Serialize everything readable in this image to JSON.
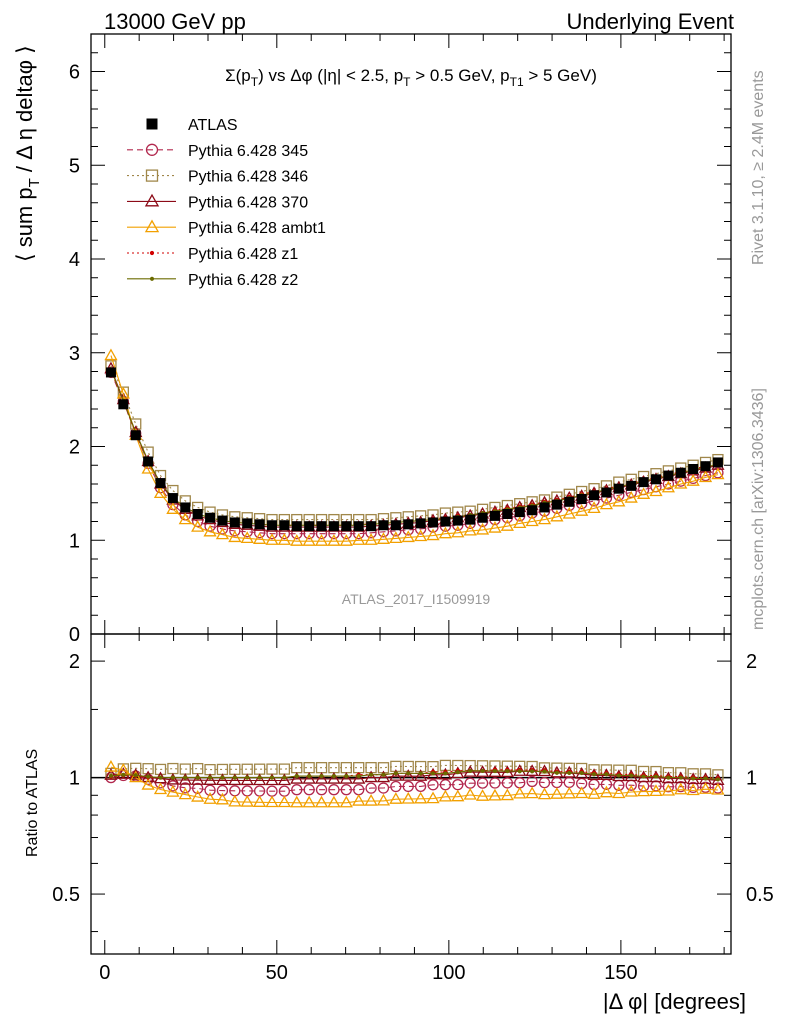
{
  "header": {
    "left": "13000 GeV pp",
    "right": "Underlying Event"
  },
  "side_labels": {
    "rivet": "Rivet 3.1.10, ≥ 2.4M events",
    "mcplots": "mcplots.cern.ch [arXiv:1306.3436]"
  },
  "chart_data": {
    "type": "scatter",
    "title": "Σ(pT) vs Δφ (|η| < 2.5, pT > 0.5 GeV, pT1 > 5 GeV)",
    "title_parts": {
      "p1": "Σ(p",
      "s1": "T",
      "p2": ") vs Δφ (|η| < 2.5, p",
      "s2": "T",
      "p3": " > 0.5 GeV, p",
      "s3": "T1",
      "p4": " > 5 GeV)"
    },
    "ylabel_parts": {
      "a": "⟨ sum p",
      "b": "T",
      "c": " / Δ η deltaφ ⟩"
    },
    "ratio_ylabel": "Ratio to ATLAS",
    "xlabel": "|Δ φ| [degrees]",
    "analysis_tag": "ATLAS_2017_I1509919",
    "xlim": [
      -4,
      182
    ],
    "main_ylim": [
      0,
      6.4
    ],
    "ratio_ylim": [
      0.35,
      2.35
    ],
    "ratio_log_y": true,
    "x_ticks": [
      0,
      50,
      100,
      150
    ],
    "main_y_ticks": [
      0,
      1,
      2,
      3,
      4,
      5,
      6
    ],
    "ratio_y_ticks": [
      0.5,
      1,
      2
    ],
    "x": [
      1.8,
      5.4,
      9,
      12.6,
      16.2,
      19.8,
      23.4,
      27,
      30.6,
      34.2,
      37.8,
      41.4,
      45,
      48.6,
      52.2,
      55.8,
      59.4,
      63,
      66.6,
      70.2,
      73.8,
      77.4,
      81,
      84.6,
      88.2,
      91.8,
      95.4,
      99,
      102.6,
      106.2,
      109.8,
      113.4,
      117,
      120.6,
      124.2,
      127.8,
      131.4,
      135,
      138.6,
      142.2,
      145.8,
      149.4,
      153,
      156.6,
      160.2,
      163.8,
      167.4,
      171,
      174.6,
      178.2
    ],
    "series": [
      {
        "name": "ATLAS",
        "color": "#000000",
        "marker": "square-filled",
        "line": "none",
        "values": [
          2.79,
          2.45,
          2.12,
          1.84,
          1.61,
          1.45,
          1.35,
          1.28,
          1.24,
          1.21,
          1.19,
          1.18,
          1.17,
          1.16,
          1.16,
          1.15,
          1.15,
          1.15,
          1.15,
          1.15,
          1.15,
          1.15,
          1.16,
          1.16,
          1.17,
          1.18,
          1.19,
          1.2,
          1.21,
          1.22,
          1.24,
          1.26,
          1.28,
          1.3,
          1.32,
          1.35,
          1.38,
          1.41,
          1.44,
          1.48,
          1.51,
          1.55,
          1.58,
          1.62,
          1.65,
          1.69,
          1.72,
          1.76,
          1.79,
          1.83
        ]
      },
      {
        "name": "Pythia 6.428 345",
        "color": "#b2284e",
        "marker": "circle-open",
        "line": "dashed",
        "values": [
          2.79,
          2.48,
          2.14,
          1.82,
          1.56,
          1.38,
          1.27,
          1.2,
          1.15,
          1.12,
          1.1,
          1.09,
          1.08,
          1.07,
          1.07,
          1.07,
          1.07,
          1.07,
          1.07,
          1.07,
          1.07,
          1.08,
          1.09,
          1.1,
          1.11,
          1.12,
          1.14,
          1.15,
          1.16,
          1.18,
          1.2,
          1.22,
          1.24,
          1.26,
          1.29,
          1.31,
          1.34,
          1.37,
          1.39,
          1.42,
          1.45,
          1.48,
          1.51,
          1.54,
          1.57,
          1.6,
          1.63,
          1.66,
          1.69,
          1.72
        ]
      },
      {
        "name": "Pythia 6.428 346",
        "color": "#a0874a",
        "marker": "square-open",
        "line": "dotted",
        "values": [
          2.86,
          2.58,
          2.24,
          1.94,
          1.69,
          1.53,
          1.42,
          1.35,
          1.3,
          1.27,
          1.25,
          1.24,
          1.23,
          1.22,
          1.22,
          1.22,
          1.22,
          1.22,
          1.22,
          1.22,
          1.22,
          1.22,
          1.23,
          1.24,
          1.25,
          1.26,
          1.27,
          1.29,
          1.3,
          1.31,
          1.33,
          1.35,
          1.37,
          1.39,
          1.41,
          1.43,
          1.46,
          1.49,
          1.52,
          1.55,
          1.58,
          1.62,
          1.65,
          1.68,
          1.71,
          1.74,
          1.77,
          1.8,
          1.83,
          1.86
        ]
      },
      {
        "name": "Pythia 6.428 370",
        "color": "#8c0a17",
        "marker": "triangle-open",
        "line": "solid",
        "values": [
          2.83,
          2.5,
          2.15,
          1.84,
          1.6,
          1.43,
          1.33,
          1.26,
          1.22,
          1.19,
          1.17,
          1.16,
          1.15,
          1.14,
          1.14,
          1.14,
          1.14,
          1.14,
          1.14,
          1.14,
          1.14,
          1.15,
          1.16,
          1.17,
          1.18,
          1.19,
          1.21,
          1.22,
          1.24,
          1.26,
          1.28,
          1.3,
          1.32,
          1.35,
          1.37,
          1.4,
          1.42,
          1.45,
          1.47,
          1.5,
          1.53,
          1.56,
          1.59,
          1.62,
          1.65,
          1.68,
          1.71,
          1.74,
          1.77,
          1.8
        ]
      },
      {
        "name": "Pythia 6.428 ambt1",
        "color": "#f2a000",
        "marker": "triangle-open",
        "line": "solid",
        "values": [
          2.97,
          2.56,
          2.12,
          1.76,
          1.5,
          1.33,
          1.22,
          1.14,
          1.09,
          1.06,
          1.03,
          1.02,
          1.01,
          1,
          1,
          0.99,
          0.99,
          0.99,
          0.99,
          0.99,
          1,
          1,
          1.01,
          1.02,
          1.03,
          1.04,
          1.05,
          1.07,
          1.08,
          1.1,
          1.11,
          1.13,
          1.15,
          1.18,
          1.2,
          1.22,
          1.25,
          1.28,
          1.31,
          1.34,
          1.38,
          1.41,
          1.45,
          1.49,
          1.52,
          1.56,
          1.6,
          1.63,
          1.67,
          1.7
        ]
      },
      {
        "name": "Pythia 6.428 z1",
        "color": "#d10000",
        "marker": "dot",
        "line": "dotted",
        "values": [
          2.81,
          2.48,
          2.14,
          1.84,
          1.61,
          1.45,
          1.35,
          1.28,
          1.24,
          1.21,
          1.19,
          1.18,
          1.17,
          1.16,
          1.16,
          1.16,
          1.16,
          1.16,
          1.16,
          1.16,
          1.17,
          1.17,
          1.18,
          1.19,
          1.2,
          1.21,
          1.23,
          1.24,
          1.26,
          1.27,
          1.29,
          1.32,
          1.34,
          1.36,
          1.38,
          1.41,
          1.43,
          1.46,
          1.49,
          1.52,
          1.55,
          1.58,
          1.61,
          1.64,
          1.67,
          1.7,
          1.73,
          1.76,
          1.79,
          1.82
        ]
      },
      {
        "name": "Pythia 6.428 z2",
        "color": "#6b6b00",
        "marker": "dot",
        "line": "solid",
        "values": [
          2.82,
          2.49,
          2.15,
          1.85,
          1.61,
          1.45,
          1.35,
          1.28,
          1.24,
          1.21,
          1.19,
          1.18,
          1.17,
          1.16,
          1.16,
          1.16,
          1.16,
          1.16,
          1.16,
          1.16,
          1.16,
          1.17,
          1.18,
          1.19,
          1.2,
          1.21,
          1.22,
          1.23,
          1.25,
          1.27,
          1.29,
          1.31,
          1.33,
          1.35,
          1.37,
          1.4,
          1.42,
          1.45,
          1.48,
          1.51,
          1.54,
          1.57,
          1.6,
          1.63,
          1.66,
          1.69,
          1.72,
          1.75,
          1.78,
          1.81
        ]
      }
    ],
    "legend_position": "top-left",
    "grid": false
  }
}
